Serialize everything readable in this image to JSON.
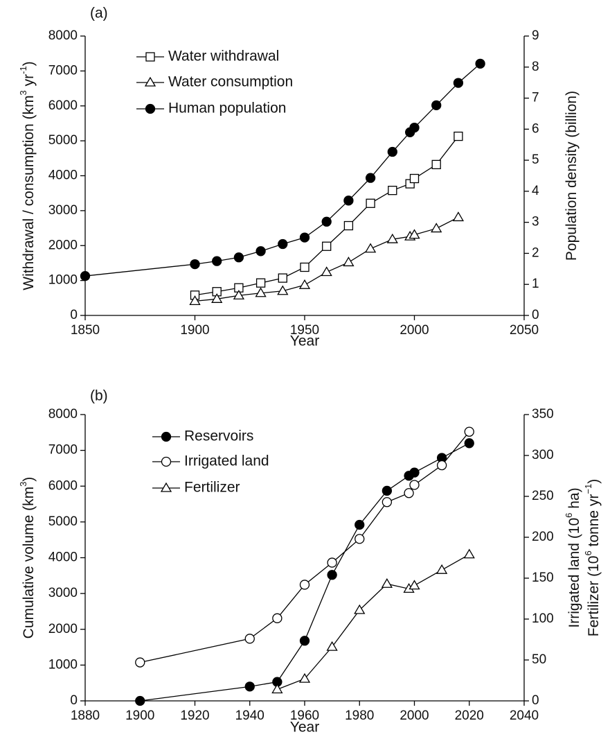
{
  "chart_data": [
    {
      "type": "line",
      "panel_label": "(a)",
      "xlabel": "Year",
      "ylabel": [
        "Withdrawal / consumption (km",
        "3",
        " yr",
        "-1",
        ")"
      ],
      "y2label": [
        "Population density (billion)"
      ],
      "xlim": [
        1850,
        2050
      ],
      "xticks": [
        1850,
        1900,
        1950,
        2000,
        2050
      ],
      "ylim": [
        0,
        8000
      ],
      "yticks": [
        0,
        1000,
        2000,
        3000,
        4000,
        5000,
        6000,
        7000,
        8000
      ],
      "y2lim": [
        0,
        9
      ],
      "y2ticks": [
        0,
        1,
        2,
        3,
        4,
        5,
        6,
        7,
        8,
        9
      ],
      "series": [
        {
          "name": "Water withdrawal",
          "color": "#000000",
          "marker": "square",
          "filled": false,
          "x": [
            1900,
            1910,
            1920,
            1930,
            1940,
            1950,
            1960,
            1970,
            1980,
            1990,
            1998,
            2000,
            2010,
            2020
          ],
          "values": [
            580,
            680,
            790,
            930,
            1070,
            1380,
            1980,
            2570,
            3210,
            3580,
            3770,
            3920,
            4320,
            5130
          ]
        },
        {
          "name": "Water consumption",
          "color": "#000000",
          "marker": "triangle",
          "filled": false,
          "x": [
            1900,
            1910,
            1920,
            1930,
            1940,
            1950,
            1960,
            1970,
            1980,
            1990,
            1998,
            2000,
            2010,
            2020
          ],
          "values": [
            410,
            470,
            570,
            640,
            700,
            870,
            1240,
            1520,
            1910,
            2180,
            2260,
            2310,
            2490,
            2810
          ]
        },
        {
          "name": "Human population",
          "color": "#000000",
          "marker": "circle",
          "filled": true,
          "axis": "y2",
          "x": [
            1850,
            1900,
            1910,
            1920,
            1930,
            1940,
            1950,
            1960,
            1970,
            1980,
            1990,
            1998,
            2000,
            2010,
            2020,
            2030
          ],
          "values": [
            1.27,
            1.65,
            1.75,
            1.87,
            2.07,
            2.3,
            2.51,
            3.02,
            3.7,
            4.43,
            5.27,
            5.9,
            6.05,
            6.77,
            7.49,
            8.11
          ]
        }
      ]
    },
    {
      "type": "line",
      "panel_label": "(b)",
      "xlabel": "Year",
      "ylabel": [
        "Cumulative volume (km",
        "3",
        ")"
      ],
      "y2label": [
        [
          "Irrigated land (10",
          "6",
          " ha)"
        ],
        [
          "Fertilizer (10",
          "6",
          " tonne yr",
          "−1",
          ")"
        ]
      ],
      "xlim": [
        1880,
        2040
      ],
      "xticks": [
        1880,
        1900,
        1920,
        1940,
        1960,
        1980,
        2000,
        2020,
        2040
      ],
      "ylim": [
        0,
        8000
      ],
      "yticks": [
        0,
        1000,
        2000,
        3000,
        4000,
        5000,
        6000,
        7000,
        8000
      ],
      "y2lim": [
        0,
        350
      ],
      "y2ticks": [
        0,
        50,
        100,
        150,
        200,
        250,
        300,
        350
      ],
      "series": [
        {
          "name": "Reservoirs",
          "color": "#000000",
          "marker": "circle",
          "filled": true,
          "x": [
            1900,
            1940,
            1950,
            1960,
            1970,
            1980,
            1990,
            1998,
            2000,
            2010,
            2020
          ],
          "values": [
            0,
            400,
            530,
            1680,
            3520,
            4920,
            5870,
            6290,
            6380,
            6790,
            7200
          ]
        },
        {
          "name": "Irrigated land",
          "color": "#000000",
          "marker": "circle",
          "filled": false,
          "axis": "y2",
          "x": [
            1900,
            1940,
            1950,
            1960,
            1970,
            1980,
            1990,
            1998,
            2000,
            2010,
            2020
          ],
          "values": [
            47,
            76,
            101,
            142,
            169,
            198,
            243,
            254,
            264,
            288,
            329
          ]
        },
        {
          "name": "Fertilizer",
          "color": "#000000",
          "marker": "triangle",
          "filled": false,
          "axis": "y2",
          "x": [
            1950,
            1960,
            1970,
            1980,
            1990,
            1998,
            2000,
            2010,
            2020
          ],
          "values": [
            14,
            27,
            66,
            111,
            143,
            137,
            141,
            160,
            179
          ]
        }
      ]
    }
  ]
}
